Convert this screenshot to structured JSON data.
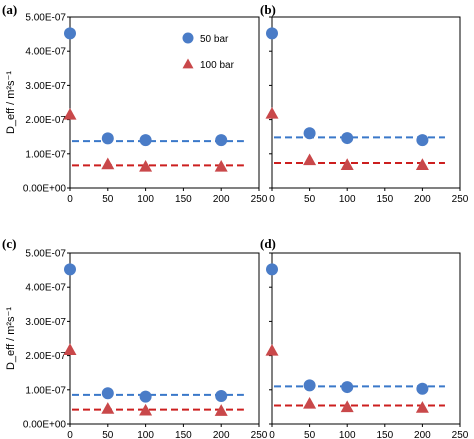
{
  "colors": {
    "s50": "#4a7cc7",
    "s100": "#c9484a",
    "fit50": "#3a78c9",
    "fit100": "#cc1f1f"
  },
  "chart_data": [
    {
      "type": "scatter",
      "panel_label": "(a)",
      "ylabel": "D_eff / m²s⁻¹",
      "xlim": [
        0,
        250
      ],
      "ylim": [
        0,
        5e-07
      ],
      "x_ticks": [
        "0",
        "50",
        "100",
        "150",
        "200",
        "250"
      ],
      "y_ticks": [
        "0.00E+00",
        "1.00E-07",
        "2.00E-07",
        "3.00E-07",
        "4.00E-07",
        "5.00E-07"
      ],
      "legend": "top-center",
      "series": [
        {
          "name": "50 bar",
          "marker": "circle",
          "x": [
            0,
            50,
            100,
            200
          ],
          "y": [
            4.52e-07,
            1.45e-07,
            1.4e-07,
            1.4e-07
          ],
          "fit_y": 1.37e-07
        },
        {
          "name": "100 bar",
          "marker": "triangle",
          "x": [
            0,
            50,
            100,
            200
          ],
          "y": [
            2.15e-07,
            7e-08,
            6.3e-08,
            6.3e-08
          ],
          "fit_y": 6.6e-08
        }
      ]
    },
    {
      "type": "scatter",
      "panel_label": "(b)",
      "ylabel": "",
      "xlim": [
        0,
        250
      ],
      "ylim": [
        0,
        5e-07
      ],
      "x_ticks": [
        "0",
        "50",
        "100",
        "150",
        "200",
        "250"
      ],
      "y_ticks": [],
      "series": [
        {
          "name": "50 bar",
          "marker": "circle",
          "x": [
            0,
            50,
            100,
            200
          ],
          "y": [
            4.52e-07,
            1.6e-07,
            1.46e-07,
            1.4e-07
          ],
          "fit_y": 1.48e-07
        },
        {
          "name": "100 bar",
          "marker": "triangle",
          "x": [
            0,
            50,
            100,
            200
          ],
          "y": [
            2.18e-07,
            8.2e-08,
            6.8e-08,
            6.8e-08
          ],
          "fit_y": 7.3e-08
        }
      ]
    },
    {
      "type": "scatter",
      "panel_label": "(c)",
      "ylabel": "D_eff / m²s⁻¹",
      "xlim": [
        0,
        250
      ],
      "ylim": [
        0,
        5e-07
      ],
      "x_ticks": [
        "0",
        "50",
        "100",
        "150",
        "200",
        "250"
      ],
      "y_ticks": [
        "0.00E+00",
        "1.00E-07",
        "2.00E-07",
        "3.00E-07",
        "4.00E-07",
        "5.00E-07"
      ],
      "series": [
        {
          "name": "50 bar",
          "marker": "circle",
          "x": [
            0,
            50,
            100,
            200
          ],
          "y": [
            4.52e-07,
            9e-08,
            8e-08,
            8.2e-08
          ],
          "fit_y": 8.5e-08
        },
        {
          "name": "100 bar",
          "marker": "triangle",
          "x": [
            0,
            50,
            100,
            200
          ],
          "y": [
            2.17e-07,
            4.5e-08,
            4e-08,
            3.9e-08
          ],
          "fit_y": 4.2e-08
        }
      ]
    },
    {
      "type": "scatter",
      "panel_label": "(d)",
      "ylabel": "",
      "xlim": [
        0,
        250
      ],
      "ylim": [
        0,
        5e-07
      ],
      "x_ticks": [
        "0",
        "50",
        "100",
        "150",
        "200",
        "250"
      ],
      "y_ticks": [],
      "series": [
        {
          "name": "50 bar",
          "marker": "circle",
          "x": [
            0,
            50,
            100,
            200
          ],
          "y": [
            4.52e-07,
            1.13e-07,
            1.08e-07,
            1.03e-07
          ],
          "fit_y": 1.1e-07
        },
        {
          "name": "100 bar",
          "marker": "triangle",
          "x": [
            0,
            50,
            100,
            200
          ],
          "y": [
            2.15e-07,
            6e-08,
            5e-08,
            4.8e-08
          ],
          "fit_y": 5.4e-08
        }
      ]
    }
  ]
}
